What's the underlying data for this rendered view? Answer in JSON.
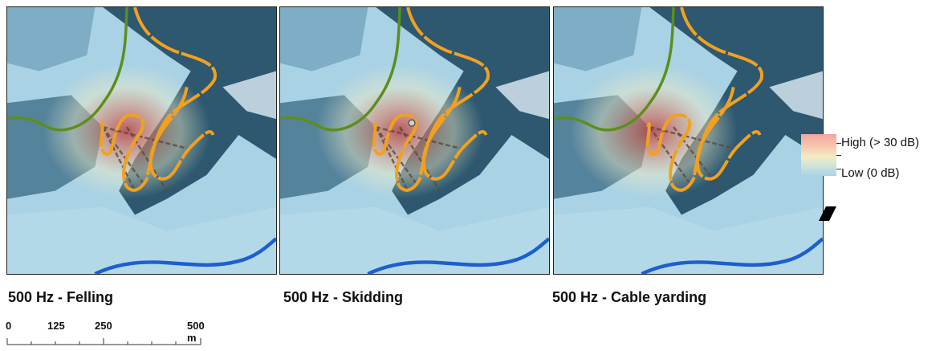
{
  "panels": [
    {
      "caption": "500 Hz - Felling",
      "activity": "felling"
    },
    {
      "caption": "500 Hz - Skidding",
      "activity": "skidding"
    },
    {
      "caption": "500 Hz - Cable yarding",
      "activity": "cable-yarding"
    }
  ],
  "legend": {
    "high_label": "High (> 30 dB)",
    "low_label": "Low  (0 dB)"
  },
  "scale_bar": {
    "labels": [
      "0",
      "125",
      "250",
      "500 m"
    ]
  },
  "colors": {
    "terrain_dark": "#1f4a63",
    "terrain_light": "#a9d2e4",
    "forest_road": "#f2a11f",
    "main_road": "#5c8e1c",
    "river": "#1c5fd0",
    "noise_high": "#c0302d",
    "noise_mid": "#f3ecc4"
  }
}
